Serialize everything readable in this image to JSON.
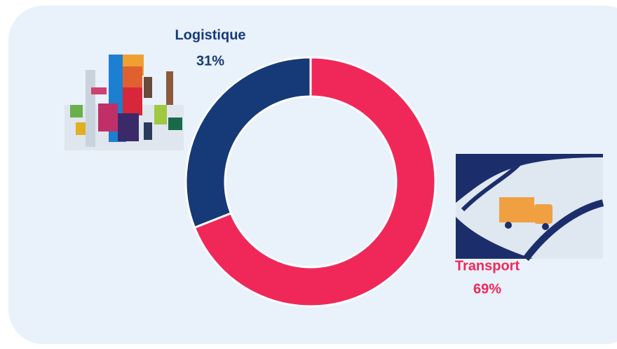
{
  "chart_data": {
    "type": "donut",
    "categories": [
      "Logistique",
      "Transport"
    ],
    "values": [
      31,
      69
    ],
    "value_labels": [
      "31%",
      "69%"
    ],
    "colors": [
      "#163a78",
      "#f0285a"
    ]
  }
}
